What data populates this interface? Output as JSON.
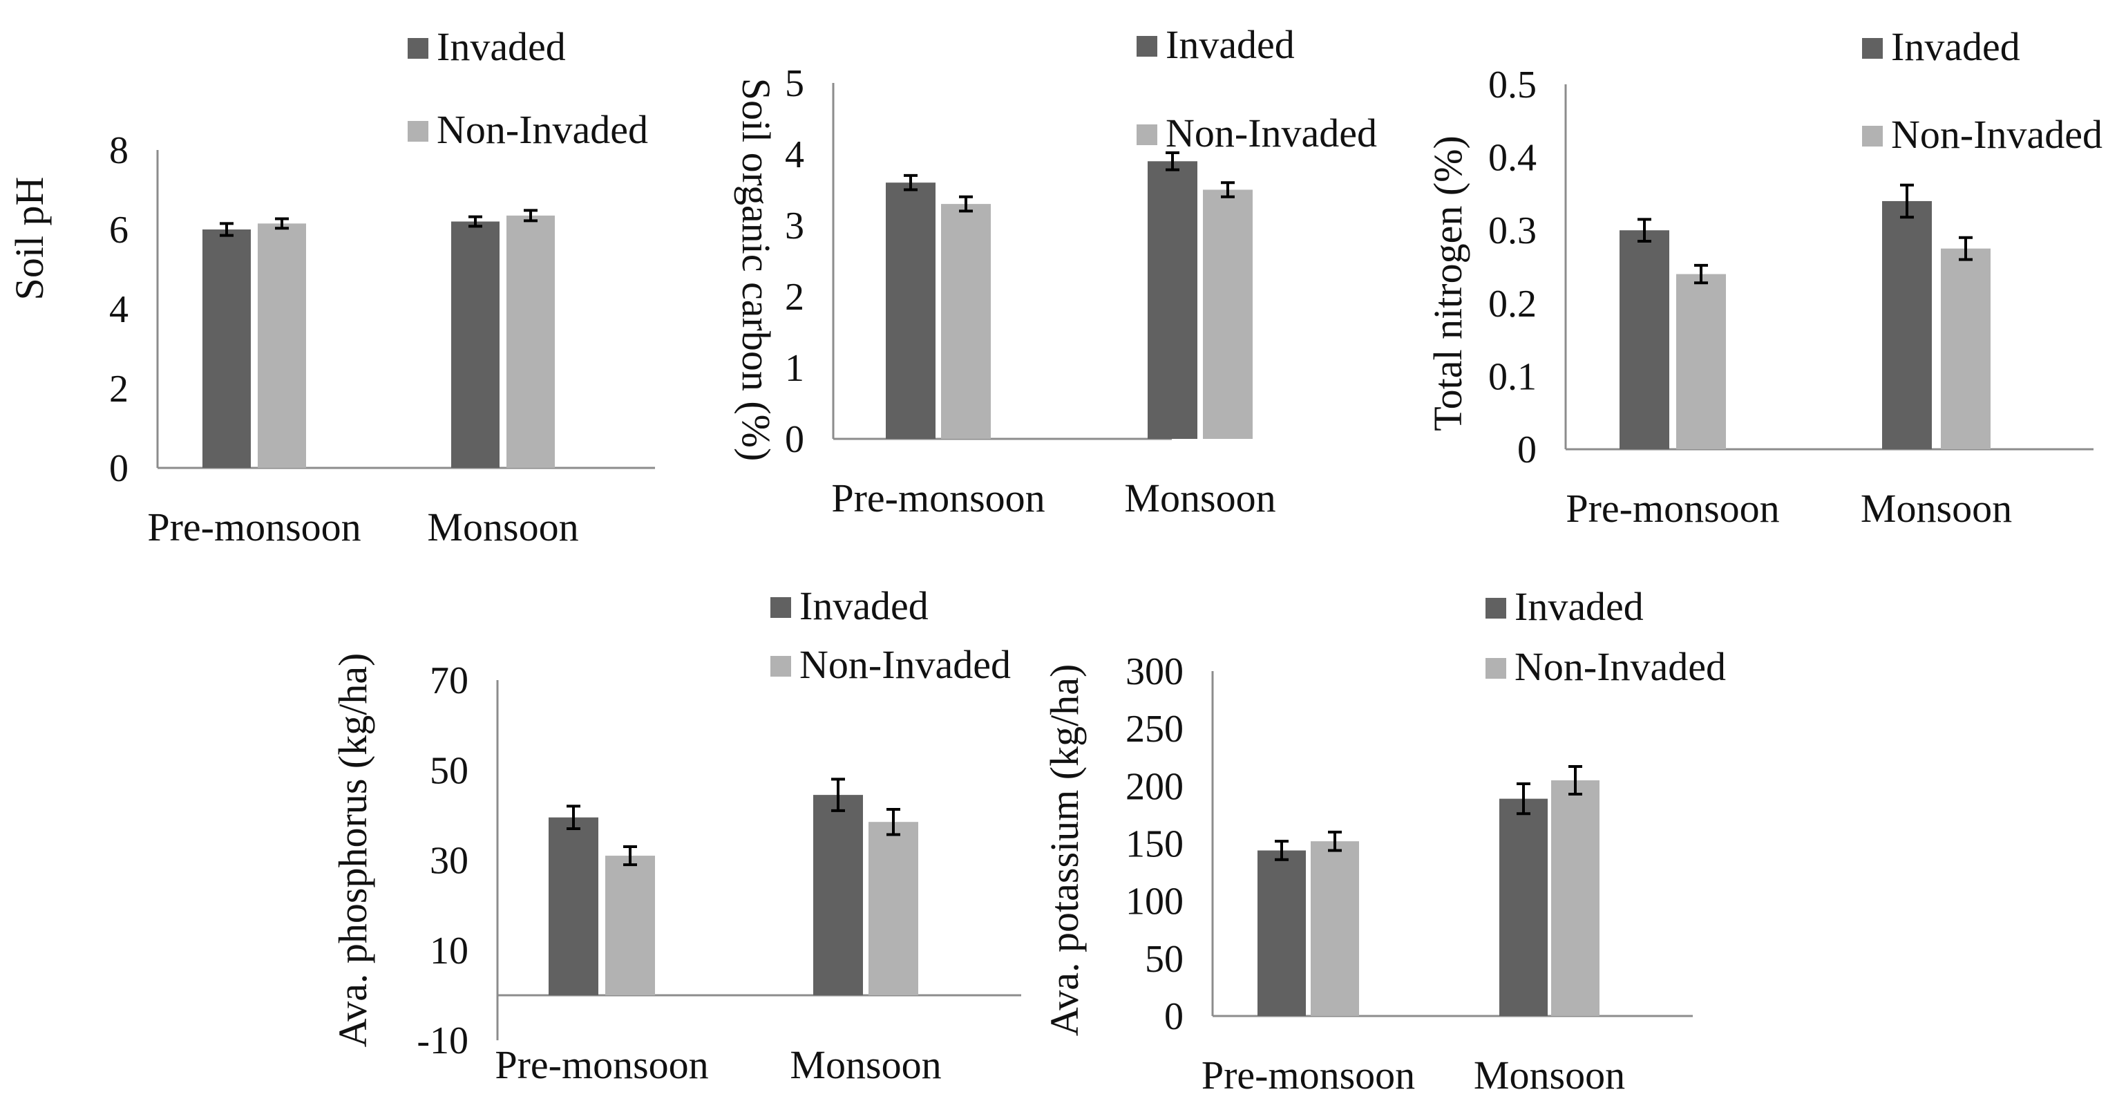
{
  "legend": {
    "invaded": "Invaded",
    "non_invaded": "Non-Invaded"
  },
  "colors": {
    "invaded": "#616161",
    "non_invaded": "#b2b2b2",
    "axis": "#8c8c8c",
    "error_bar": "#000000"
  },
  "chart_data": [
    {
      "type": "bar",
      "id": "ph",
      "categories": [
        "Pre-monsoon",
        "Monsoon"
      ],
      "series": [
        {
          "name": "Invaded",
          "values": [
            6.0,
            6.2
          ],
          "error": [
            0.15,
            0.12
          ]
        },
        {
          "name": "Non-Invaded",
          "values": [
            6.15,
            6.35
          ],
          "error": [
            0.12,
            0.13
          ]
        }
      ],
      "ylabel": "Soil pH",
      "ylim": [
        0,
        8
      ],
      "yticks": [
        0,
        2,
        4,
        6,
        8
      ],
      "ytick_labels": [
        "0",
        "2",
        "4",
        "6",
        "8"
      ],
      "legend_position": "top"
    },
    {
      "type": "bar",
      "id": "soc",
      "categories": [
        "Pre-monsoon",
        "Monsoon"
      ],
      "series": [
        {
          "name": "Invaded",
          "values": [
            3.6,
            3.9
          ],
          "error": [
            0.1,
            0.12
          ]
        },
        {
          "name": "Non-Invaded",
          "values": [
            3.3,
            3.5
          ],
          "error": [
            0.1,
            0.1
          ]
        }
      ],
      "ylabel": "Soil organic carbon (%)",
      "ylim": [
        0,
        5
      ],
      "yticks": [
        0,
        1,
        2,
        3,
        4,
        5
      ],
      "ytick_labels": [
        "0",
        "1",
        "2",
        "3",
        "4",
        "5"
      ],
      "legend_position": "top-right"
    },
    {
      "type": "bar",
      "id": "tn",
      "categories": [
        "Pre-monsoon",
        "Monsoon"
      ],
      "series": [
        {
          "name": "Invaded",
          "values": [
            0.3,
            0.34
          ],
          "error": [
            0.015,
            0.022
          ]
        },
        {
          "name": "Non-Invaded",
          "values": [
            0.24,
            0.275
          ],
          "error": [
            0.012,
            0.015
          ]
        }
      ],
      "ylabel": "Total nitrogen (%)",
      "ylim": [
        0,
        0.5
      ],
      "yticks": [
        0,
        0.1,
        0.2,
        0.3,
        0.4,
        0.5
      ],
      "ytick_labels": [
        "0",
        "0.1",
        "0.2",
        "0.3",
        "0.4",
        "0.5"
      ],
      "legend_position": "top-right"
    },
    {
      "type": "bar",
      "id": "p",
      "categories": [
        "Pre-monsoon",
        "Monsoon"
      ],
      "series": [
        {
          "name": "Invaded",
          "values": [
            39.5,
            44.5
          ],
          "error": [
            2.5,
            3.5
          ]
        },
        {
          "name": "Non-Invaded",
          "values": [
            31,
            38.5
          ],
          "error": [
            2,
            2.8
          ]
        }
      ],
      "ylabel": "Ava. phosphorus (kg/ha)",
      "ylim": [
        -10,
        70
      ],
      "yticks": [
        -10,
        10,
        30,
        50,
        70
      ],
      "ytick_labels": [
        "-10",
        "10",
        "30",
        "50",
        "70"
      ],
      "legend_position": "top-right"
    },
    {
      "type": "bar",
      "id": "k",
      "categories": [
        "Pre-monsoon",
        "Monsoon"
      ],
      "series": [
        {
          "name": "Invaded",
          "values": [
            144,
            189
          ],
          "error": [
            8,
            13
          ]
        },
        {
          "name": "Non-Invaded",
          "values": [
            152,
            205
          ],
          "error": [
            8,
            12
          ]
        }
      ],
      "ylabel": "Ava. potassium (kg/ha)",
      "ylim": [
        0,
        300
      ],
      "yticks": [
        0,
        50,
        100,
        150,
        200,
        250,
        300
      ],
      "ytick_labels": [
        "0",
        "50",
        "100",
        "150",
        "200",
        "250",
        "300"
      ],
      "legend_position": "top-right"
    }
  ]
}
